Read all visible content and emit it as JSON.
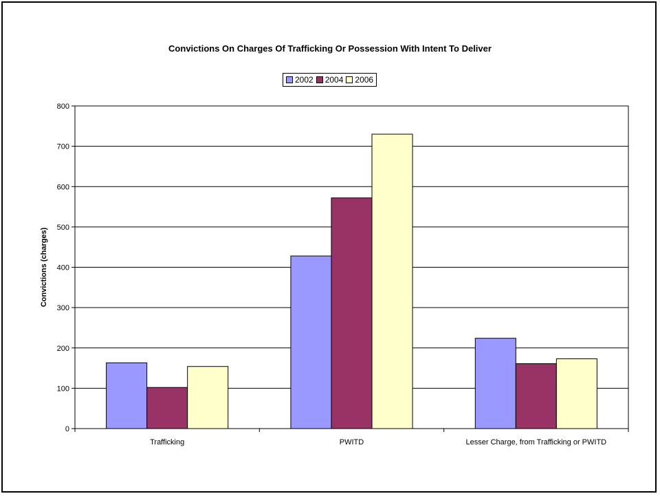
{
  "chart_data": {
    "type": "bar",
    "title": "Convictions On Charges Of Trafficking Or Possession With Intent To Deliver",
    "xlabel": "",
    "ylabel": "Convictions (charges)",
    "categories": [
      "Trafficking",
      "PWITD",
      "Lesser Charge, from Trafficking or PWITD"
    ],
    "series": [
      {
        "name": "2002",
        "color": "#9999ff",
        "values": [
          163,
          428,
          224
        ]
      },
      {
        "name": "2004",
        "color": "#993366",
        "values": [
          102,
          572,
          161
        ]
      },
      {
        "name": "2006",
        "color": "#ffffcc",
        "values": [
          154,
          730,
          173
        ]
      }
    ],
    "ylim": [
      0,
      800
    ],
    "yticks": [
      0,
      100,
      200,
      300,
      400,
      500,
      600,
      700,
      800
    ],
    "grid": true,
    "legend_position": "top-center"
  }
}
